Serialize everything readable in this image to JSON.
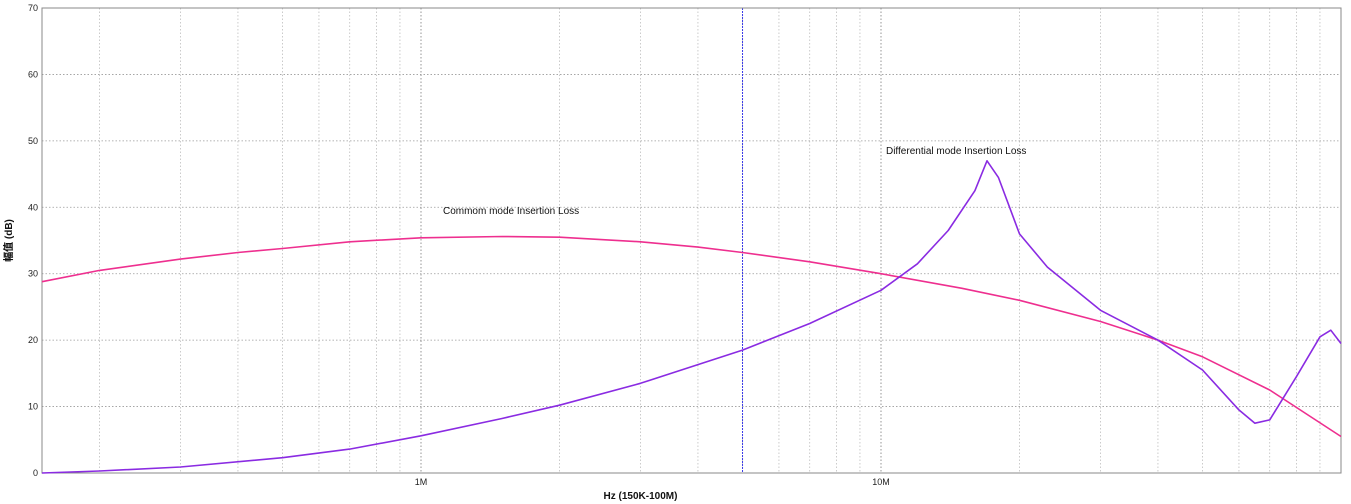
{
  "chart_data": {
    "type": "line",
    "xlabel": "Hz  (150K-100M)",
    "ylabel": "幅值 (dB)",
    "xscale": "log",
    "xlim": [
      150000,
      100000000
    ],
    "ylim": [
      0,
      70
    ],
    "yticks": [
      0,
      10,
      20,
      30,
      40,
      50,
      60,
      70
    ],
    "xtick_labels": [
      {
        "value": 1000000,
        "label": "1M"
      },
      {
        "value": 10000000,
        "label": "10M"
      }
    ],
    "grid": true,
    "marker_line_x": 5000000,
    "annotations": [
      {
        "text": "Commom mode Insertion Loss",
        "x": 1000000,
        "y": 39
      },
      {
        "text": "Differential mode Insertion Loss",
        "x": 10000000,
        "y": 48
      }
    ],
    "series": [
      {
        "name": "Commom mode Insertion Loss",
        "color": "#ee2f8f",
        "x": [
          150000,
          200000,
          300000,
          400000,
          500000,
          700000,
          1000000,
          1500000,
          2000000,
          3000000,
          4000000,
          5000000,
          7000000,
          10000000,
          15000000,
          20000000,
          30000000,
          40000000,
          50000000,
          70000000,
          100000000
        ],
        "y": [
          28.8,
          30.5,
          32.2,
          33.2,
          33.8,
          34.8,
          35.4,
          35.6,
          35.5,
          34.8,
          34.0,
          33.2,
          31.8,
          30.0,
          27.8,
          26.0,
          22.8,
          20.0,
          17.5,
          12.5,
          5.5
        ]
      },
      {
        "name": "Differential mode Insertion Loss",
        "color": "#8a2be2",
        "x": [
          150000,
          200000,
          300000,
          500000,
          700000,
          1000000,
          1500000,
          2000000,
          3000000,
          5000000,
          7000000,
          10000000,
          12000000,
          14000000,
          16000000,
          17000000,
          18000000,
          20000000,
          23000000,
          30000000,
          40000000,
          50000000,
          60000000,
          65000000,
          70000000,
          80000000,
          90000000,
          95000000,
          100000000
        ],
        "y": [
          0,
          0.3,
          0.9,
          2.3,
          3.6,
          5.6,
          8.2,
          10.2,
          13.5,
          18.5,
          22.5,
          27.5,
          31.5,
          36.5,
          42.5,
          47.0,
          44.5,
          36.0,
          31.0,
          24.5,
          20.0,
          15.5,
          9.5,
          7.5,
          8.0,
          14.5,
          20.5,
          21.5,
          19.5
        ]
      }
    ]
  }
}
